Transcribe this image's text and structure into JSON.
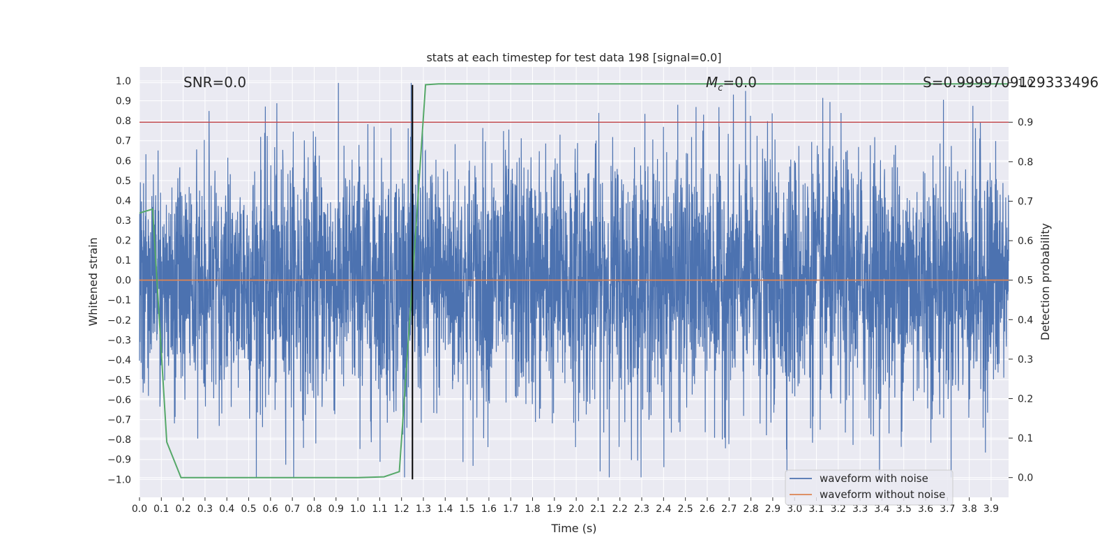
{
  "chart_data": {
    "type": "line",
    "title": "stats at each timestep for test data 198 [signal=0.0]",
    "xlabel": "Time (s)",
    "ylabel": "Whitened strain",
    "y2label": "Detection probability",
    "xlim": [
      0.0,
      3.98
    ],
    "ylim": [
      -1.09,
      1.07
    ],
    "y2lim": [
      -0.05,
      1.04
    ],
    "xticks": [
      0.0,
      0.1,
      0.2,
      0.3,
      0.4,
      0.5,
      0.6,
      0.7,
      0.8,
      0.9,
      1.0,
      1.1,
      1.2,
      1.3,
      1.4,
      1.5,
      1.6,
      1.7,
      1.8,
      1.9,
      2.0,
      2.1,
      2.2,
      2.3,
      2.4,
      2.5,
      2.6,
      2.7,
      2.8,
      2.9,
      3.0,
      3.1,
      3.2,
      3.3,
      3.4,
      3.5,
      3.6,
      3.7,
      3.8,
      3.9
    ],
    "yticks": [
      1.0,
      0.9,
      0.8,
      0.7,
      0.6,
      0.5,
      0.4,
      0.3,
      0.2,
      0.1,
      0.0,
      -0.1,
      -0.2,
      -0.3,
      -0.4,
      -0.5,
      -0.6,
      -0.7,
      -0.8,
      -0.9,
      -1.0
    ],
    "y2ticks": [
      1.0,
      0.9,
      0.8,
      0.7,
      0.6,
      0.5,
      0.4,
      0.3,
      0.2,
      0.1,
      0.0
    ],
    "grid": true,
    "annotations": {
      "snr": "SNR=0.0",
      "mc_symbol": "M",
      "mc_sub": "c",
      "mc_value": "=0.0",
      "s": "S=0.9999709129333496"
    },
    "legend": {
      "placement": "lower-right",
      "entries": [
        {
          "label": "waveform with noise",
          "color": "#4c72b0"
        },
        {
          "label": "waveform without noise",
          "color": "#dd8452"
        }
      ]
    },
    "series": [
      {
        "name": "waveform with noise",
        "axis": "left",
        "color": "#4c72b0",
        "description": "dense noise time series sampled across 0–3.98 s, amplitude approx ±1.0",
        "sample_rate": 1024,
        "amplitude": 0.32,
        "seed": 198
      },
      {
        "name": "waveform without noise",
        "axis": "left",
        "color": "#dd8452",
        "x": [
          0.0,
          3.98
        ],
        "y": [
          0.0,
          0.0
        ]
      },
      {
        "name": "detection probability",
        "axis": "right",
        "color": "#55a868",
        "x": [
          0.0,
          0.06,
          0.125,
          0.19,
          0.3,
          0.6,
          1.0,
          1.12,
          1.19,
          1.25,
          1.31,
          1.37,
          3.98
        ],
        "y": [
          0.67,
          0.68,
          0.09,
          0.0,
          0.0,
          0.0,
          0.0,
          0.002,
          0.015,
          0.5,
          0.995,
          0.997,
          0.997
        ]
      },
      {
        "name": "threshold",
        "axis": "right",
        "color": "#c44e52",
        "x": [
          0.0,
          3.98
        ],
        "y": [
          0.9,
          0.9
        ]
      }
    ],
    "vline": {
      "x": 1.25,
      "color": "#000000"
    }
  }
}
